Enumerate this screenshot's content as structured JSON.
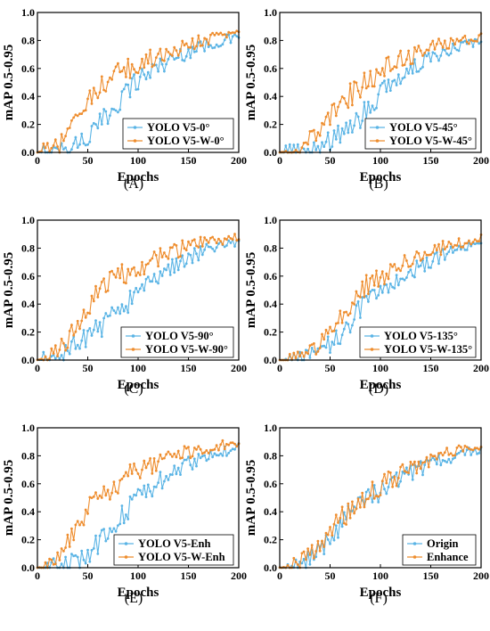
{
  "colors": {
    "blue": "#5ab4e5",
    "orange": "#ee8d2e",
    "frame": "#000000"
  },
  "chart_data": [
    {
      "type": "line",
      "panel_label": "(A)",
      "xlabel": "Epochs",
      "ylabel": "mAP 0.5-0.95",
      "xlim": [
        0,
        200
      ],
      "ylim": [
        0,
        1.0
      ],
      "xticks": [
        0,
        50,
        100,
        150,
        200
      ],
      "yticks": [
        0.0,
        0.2,
        0.4,
        0.6,
        0.8,
        1.0
      ],
      "legend_position": "bottom-right",
      "series": [
        {
          "name": "YOLO V5-0°",
          "color": "blue",
          "x": [
            0,
            10,
            20,
            30,
            40,
            50,
            60,
            70,
            80,
            90,
            100,
            110,
            120,
            130,
            140,
            150,
            160,
            170,
            180,
            190,
            200
          ],
          "values": [
            0.0,
            0.0,
            0.01,
            0.03,
            0.07,
            0.11,
            0.18,
            0.27,
            0.37,
            0.45,
            0.52,
            0.57,
            0.62,
            0.65,
            0.69,
            0.72,
            0.75,
            0.77,
            0.79,
            0.81,
            0.82
          ]
        },
        {
          "name": "YOLO V5-W-0°",
          "color": "orange",
          "x": [
            0,
            10,
            20,
            30,
            40,
            50,
            60,
            70,
            80,
            90,
            100,
            110,
            120,
            130,
            140,
            150,
            160,
            170,
            180,
            190,
            200
          ],
          "values": [
            0.0,
            0.01,
            0.04,
            0.14,
            0.28,
            0.38,
            0.45,
            0.5,
            0.55,
            0.59,
            0.63,
            0.66,
            0.69,
            0.72,
            0.75,
            0.77,
            0.79,
            0.81,
            0.83,
            0.85,
            0.86
          ]
        }
      ]
    },
    {
      "type": "line",
      "panel_label": "(B)",
      "xlabel": "Epochs",
      "ylabel": "mAP 0.5-0.95",
      "xlim": [
        0,
        200
      ],
      "ylim": [
        0,
        1.0
      ],
      "xticks": [
        0,
        50,
        100,
        150,
        200
      ],
      "yticks": [
        0.0,
        0.2,
        0.4,
        0.6,
        0.8,
        1.0
      ],
      "legend_position": "bottom-right",
      "series": [
        {
          "name": "YOLO V5-45°",
          "color": "blue",
          "x": [
            0,
            10,
            20,
            30,
            40,
            50,
            60,
            70,
            80,
            90,
            100,
            110,
            120,
            130,
            140,
            150,
            160,
            170,
            180,
            190,
            200
          ],
          "values": [
            0.0,
            0.0,
            0.01,
            0.02,
            0.04,
            0.08,
            0.13,
            0.19,
            0.26,
            0.34,
            0.41,
            0.48,
            0.54,
            0.59,
            0.64,
            0.68,
            0.71,
            0.74,
            0.76,
            0.78,
            0.8
          ]
        },
        {
          "name": "YOLO V5-W-45°",
          "color": "orange",
          "x": [
            0,
            10,
            20,
            30,
            40,
            50,
            60,
            70,
            80,
            90,
            100,
            110,
            120,
            130,
            140,
            150,
            160,
            170,
            180,
            190,
            200
          ],
          "values": [
            0.0,
            0.01,
            0.03,
            0.09,
            0.17,
            0.26,
            0.34,
            0.41,
            0.47,
            0.53,
            0.58,
            0.62,
            0.66,
            0.69,
            0.72,
            0.75,
            0.77,
            0.79,
            0.8,
            0.81,
            0.82
          ]
        }
      ]
    },
    {
      "type": "line",
      "panel_label": "(C)",
      "xlabel": "Epochs",
      "ylabel": "mAP 0.5-0.95",
      "xlim": [
        0,
        200
      ],
      "ylim": [
        0,
        1.0
      ],
      "xticks": [
        0,
        50,
        100,
        150,
        200
      ],
      "yticks": [
        0.0,
        0.2,
        0.4,
        0.6,
        0.8,
        1.0
      ],
      "legend_position": "bottom-right",
      "series": [
        {
          "name": "YOLO V5-90°",
          "color": "blue",
          "x": [
            0,
            10,
            20,
            30,
            40,
            50,
            60,
            70,
            80,
            90,
            100,
            110,
            120,
            130,
            140,
            150,
            160,
            170,
            180,
            190,
            200
          ],
          "values": [
            0.0,
            0.0,
            0.02,
            0.06,
            0.12,
            0.17,
            0.22,
            0.28,
            0.35,
            0.42,
            0.49,
            0.55,
            0.6,
            0.65,
            0.69,
            0.73,
            0.76,
            0.79,
            0.81,
            0.83,
            0.85
          ]
        },
        {
          "name": "YOLO V5-W-90°",
          "color": "orange",
          "x": [
            0,
            10,
            20,
            30,
            40,
            50,
            60,
            70,
            80,
            90,
            100,
            110,
            120,
            130,
            140,
            150,
            160,
            170,
            180,
            190,
            200
          ],
          "values": [
            0.0,
            0.01,
            0.06,
            0.15,
            0.27,
            0.38,
            0.47,
            0.54,
            0.59,
            0.63,
            0.67,
            0.7,
            0.73,
            0.76,
            0.79,
            0.81,
            0.83,
            0.85,
            0.86,
            0.87,
            0.88
          ]
        }
      ]
    },
    {
      "type": "line",
      "panel_label": "(D)",
      "xlabel": "Epochs",
      "ylabel": "mAP 0.5-0.95",
      "xlim": [
        0,
        200
      ],
      "ylim": [
        0,
        1.0
      ],
      "xticks": [
        0,
        50,
        100,
        150,
        200
      ],
      "yticks": [
        0.0,
        0.2,
        0.4,
        0.6,
        0.8,
        1.0
      ],
      "legend_position": "bottom-right",
      "series": [
        {
          "name": "YOLO V5-135°",
          "color": "blue",
          "x": [
            0,
            10,
            20,
            30,
            40,
            50,
            60,
            70,
            80,
            90,
            100,
            110,
            120,
            130,
            140,
            150,
            160,
            170,
            180,
            190,
            200
          ],
          "values": [
            0.0,
            0.0,
            0.01,
            0.02,
            0.05,
            0.11,
            0.19,
            0.27,
            0.35,
            0.42,
            0.48,
            0.54,
            0.59,
            0.63,
            0.67,
            0.71,
            0.74,
            0.77,
            0.79,
            0.81,
            0.83
          ]
        },
        {
          "name": "YOLO V5-W-135°",
          "color": "orange",
          "x": [
            0,
            10,
            20,
            30,
            40,
            50,
            60,
            70,
            80,
            90,
            100,
            110,
            120,
            130,
            140,
            150,
            160,
            170,
            180,
            190,
            200
          ],
          "values": [
            0.0,
            0.0,
            0.02,
            0.04,
            0.1,
            0.19,
            0.3,
            0.4,
            0.48,
            0.55,
            0.6,
            0.65,
            0.69,
            0.72,
            0.75,
            0.78,
            0.8,
            0.82,
            0.84,
            0.86,
            0.88
          ]
        }
      ]
    },
    {
      "type": "line",
      "panel_label": "(E)",
      "xlabel": "Epochs",
      "ylabel": "mAP 0.5-0.95",
      "xlim": [
        0,
        200
      ],
      "ylim": [
        0,
        1.0
      ],
      "xticks": [
        0,
        50,
        100,
        150,
        200
      ],
      "yticks": [
        0.0,
        0.2,
        0.4,
        0.6,
        0.8,
        1.0
      ],
      "legend_position": "bottom-right",
      "series": [
        {
          "name": "YOLO V5-Enh",
          "color": "blue",
          "x": [
            0,
            10,
            20,
            30,
            40,
            50,
            60,
            70,
            80,
            90,
            100,
            110,
            120,
            130,
            140,
            150,
            160,
            170,
            180,
            190,
            200
          ],
          "values": [
            0.0,
            0.0,
            0.01,
            0.02,
            0.05,
            0.1,
            0.17,
            0.26,
            0.35,
            0.43,
            0.5,
            0.56,
            0.61,
            0.66,
            0.7,
            0.74,
            0.77,
            0.8,
            0.82,
            0.84,
            0.86
          ]
        },
        {
          "name": "YOLO V5-W-Enh",
          "color": "orange",
          "x": [
            0,
            10,
            20,
            30,
            40,
            50,
            60,
            70,
            80,
            90,
            100,
            110,
            120,
            130,
            140,
            150,
            160,
            170,
            180,
            190,
            200
          ],
          "values": [
            0.0,
            0.01,
            0.05,
            0.19,
            0.32,
            0.42,
            0.5,
            0.56,
            0.61,
            0.65,
            0.68,
            0.71,
            0.74,
            0.77,
            0.8,
            0.82,
            0.84,
            0.86,
            0.87,
            0.88,
            0.89
          ]
        }
      ]
    },
    {
      "type": "line",
      "panel_label": "(F)",
      "xlabel": "Epochs",
      "ylabel": "mAP 0.5-0.95",
      "xlim": [
        0,
        200
      ],
      "ylim": [
        0,
        1.0
      ],
      "xticks": [
        0,
        50,
        100,
        150,
        200
      ],
      "yticks": [
        0.0,
        0.2,
        0.4,
        0.6,
        0.8,
        1.0
      ],
      "legend_position": "bottom-right",
      "series": [
        {
          "name": "Origin",
          "color": "blue",
          "x": [
            0,
            10,
            20,
            30,
            40,
            50,
            60,
            70,
            80,
            90,
            100,
            110,
            120,
            130,
            140,
            150,
            160,
            170,
            180,
            190,
            200
          ],
          "values": [
            0.0,
            0.0,
            0.02,
            0.07,
            0.14,
            0.22,
            0.3,
            0.37,
            0.44,
            0.5,
            0.55,
            0.6,
            0.64,
            0.68,
            0.71,
            0.74,
            0.77,
            0.79,
            0.81,
            0.83,
            0.85
          ]
        },
        {
          "name": "Enhance",
          "color": "orange",
          "x": [
            0,
            10,
            20,
            30,
            40,
            50,
            60,
            70,
            80,
            90,
            100,
            110,
            120,
            130,
            140,
            150,
            160,
            170,
            180,
            190,
            200
          ],
          "values": [
            0.0,
            0.0,
            0.03,
            0.09,
            0.17,
            0.26,
            0.34,
            0.41,
            0.48,
            0.54,
            0.59,
            0.63,
            0.67,
            0.71,
            0.74,
            0.77,
            0.8,
            0.82,
            0.84,
            0.86,
            0.87
          ]
        }
      ]
    }
  ]
}
